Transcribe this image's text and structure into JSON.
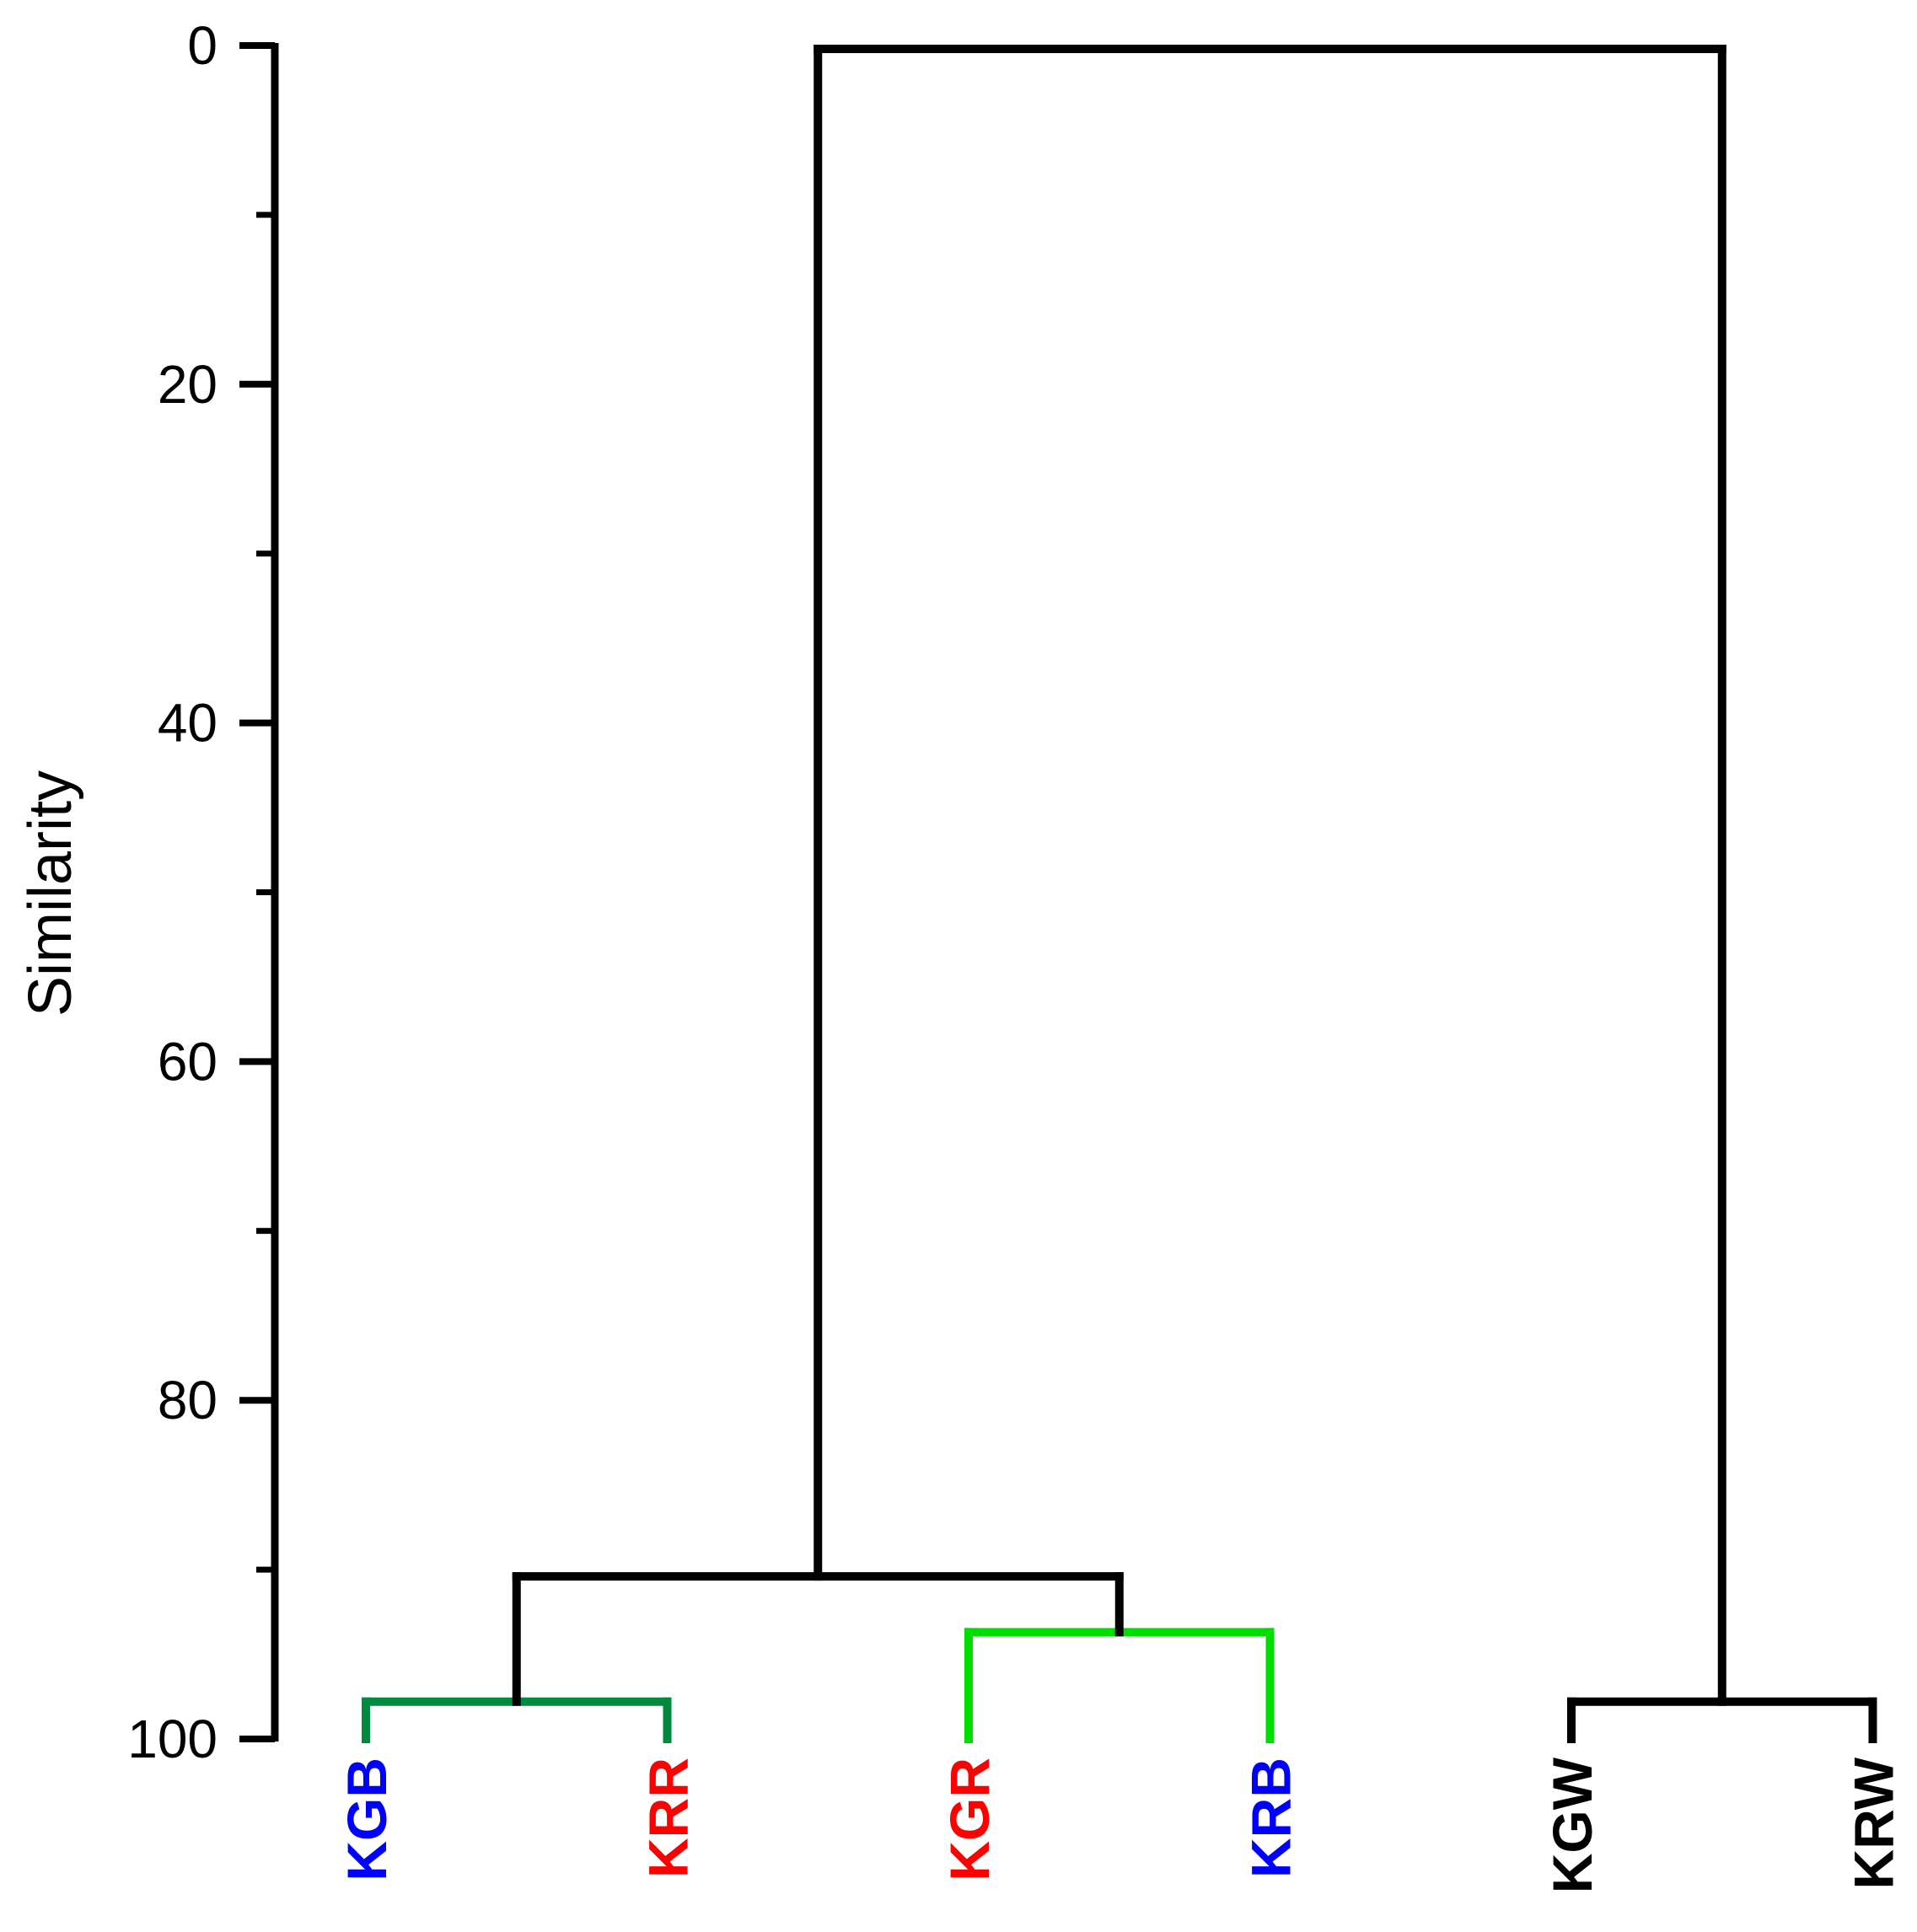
{
  "chart_data": {
    "type": "dendrogram",
    "ylabel": "Similarity",
    "ylim": [
      0,
      100
    ],
    "y_ticks_major": [
      0,
      20,
      40,
      60,
      80,
      100
    ],
    "y_ticks_minor": [
      10,
      30,
      50,
      70,
      90
    ],
    "y_axis_inverted": true,
    "leaves": [
      {
        "label": "KGB",
        "color": "#0000ff"
      },
      {
        "label": "KRR",
        "color": "#ff0000"
      },
      {
        "label": "KGR",
        "color": "#ff0000"
      },
      {
        "label": "KRB",
        "color": "#0000ff"
      },
      {
        "label": "KGW",
        "color": "#000000"
      },
      {
        "label": "KRW",
        "color": "#000000"
      }
    ],
    "merges": [
      {
        "id": "m1",
        "children": [
          "KGB",
          "KRR"
        ],
        "similarity": 97.8,
        "color": "#008a3e"
      },
      {
        "id": "m2",
        "children": [
          "KGR",
          "KRB"
        ],
        "similarity": 93.7,
        "color": "#00dd00"
      },
      {
        "id": "m3",
        "children": [
          "KGW",
          "KRW"
        ],
        "similarity": 97.8,
        "color": "#000000"
      },
      {
        "id": "m4",
        "children": [
          "m1",
          "m2"
        ],
        "similarity": 90.4,
        "color": "#000000"
      },
      {
        "id": "m5",
        "children": [
          "m4",
          "m3"
        ],
        "similarity": 0.2,
        "color": "#000000"
      }
    ],
    "grid": false,
    "legend": "none"
  }
}
